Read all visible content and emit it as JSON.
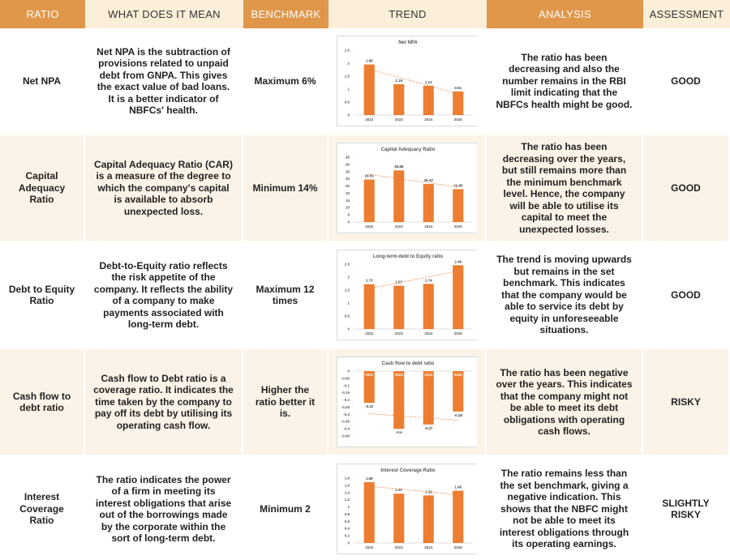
{
  "headers": [
    "RATIO",
    "WHAT DOES IT MEAN",
    "BENCHMARK",
    "TREND",
    "ANALYSIS",
    "ASSESSMENT"
  ],
  "rows": [
    {
      "ratio": "Net NPA",
      "meaning": "Net NPA is the subtraction of provisions related to unpaid debt from GNPA. This gives the exact value of bad loans. It is a better indicator of NBFCs' health.",
      "benchmark": "Maximum 6%",
      "trend": {
        "type": "bar",
        "title": "Net NPA",
        "color": "#ed7d31",
        "categories": [
          "2022",
          "2023",
          "2024",
          "2025"
        ],
        "values": [
          1.95,
          1.19,
          1.13,
          0.91
        ],
        "ylim": [
          0,
          2.5
        ],
        "yticks": [
          0,
          0.5,
          1,
          1.5,
          2,
          2.5
        ]
      },
      "analysis": "The ratio has been decreasing and also the number remains in the RBI limit indicating that the NBFCs health might be good.",
      "assessment": "GOOD"
    },
    {
      "ratio": "Capital Adequacy Ratio",
      "meaning": "Capital Adequacy Ratio (CAR) is a measure of the degree to which the company's capital is available to absorb unexpected loss.",
      "benchmark": "Minimum 14%",
      "trend": {
        "type": "bar",
        "title": "Capital Adequacy Ratio",
        "color": "#ed7d31",
        "categories": [
          "2022",
          "2023",
          "2024",
          "2025"
        ],
        "values": [
          29.55,
          35.86,
          26.42,
          22.85
        ],
        "ylim": [
          0,
          45
        ],
        "yticks": [
          0,
          5,
          10,
          15,
          20,
          25,
          30,
          35,
          40,
          45
        ]
      },
      "analysis": "The ratio has been decreasing over the years, but still remains more than the minimum benchmark level. Hence, the company will be able to utilise its capital to meet the unexpected losses.",
      "assessment": "GOOD"
    },
    {
      "ratio": "Debt to Equity Ratio",
      "meaning": "Debt-to-Equity ratio reflects the risk appetite of the company. It reflects the ability of a company to make payments associated with long-term debt.",
      "benchmark": "Maximum 12 times",
      "trend": {
        "type": "bar",
        "title": "Long-term-debt to Equity ratio",
        "color": "#ed7d31",
        "categories": [
          "2022",
          "2023",
          "2024",
          "2025"
        ],
        "values": [
          1.73,
          1.67,
          1.74,
          2.46
        ],
        "ylim": [
          0,
          2.5
        ],
        "yticks": [
          0,
          0.5,
          1,
          1.5,
          2,
          2.5
        ]
      },
      "analysis": "The trend is moving upwards but remains in the set benchmark. This indicates that the company would be able to service its debt by equity in unforeseeable situations.",
      "assessment": "GOOD"
    },
    {
      "ratio": "Cash flow to debt ratio",
      "meaning": "Cash flow to Debt ratio is a coverage ratio. It indicates the time taken by the company to pay off its debt by utilising its operating cash flow.",
      "benchmark": "Higher the ratio better it is.",
      "trend": {
        "type": "bar",
        "title": "Cash flow to debt ratio",
        "color": "#ed7d31",
        "categories": [
          "2022",
          "2023",
          "2024",
          "2025"
        ],
        "values": [
          -0.22,
          -0.4,
          -0.37,
          -0.28
        ],
        "ylim": [
          -0.45,
          0
        ],
        "yticks": [
          0,
          -0.05,
          -0.1,
          -0.15,
          -0.2,
          -0.25,
          -0.3,
          -0.35,
          -0.4,
          -0.45
        ]
      },
      "analysis": "The ratio has been negative over the years. This indicates that the company might not be able to meet its debt obligations with operating cash flows.",
      "assessment": "RISKY"
    },
    {
      "ratio": "Interest Coverage Ratio",
      "meaning": "The ratio indicates the power of a firm in meeting its interest obligations that arise out of the borrowings made by the corporate within the sort of long-term debt.",
      "benchmark": "Minimum 2",
      "trend": {
        "type": "bar",
        "title": "Interest Coverage Ratio",
        "color": "#ed7d31",
        "categories": [
          "2022",
          "2023",
          "2024",
          "2025"
        ],
        "values": [
          1.69,
          1.37,
          1.32,
          1.45
        ],
        "ylim": [
          0,
          1.8
        ],
        "yticks": [
          0,
          0.2,
          0.4,
          0.6,
          0.8,
          1,
          1.2,
          1.4,
          1.6,
          1.8
        ]
      },
      "analysis": "The ratio remains less than the set benchmark, giving a negative indication. This shows that the NBFC might not be able to meet its interest obligations through its operating earnings.",
      "assessment": "SLIGHTLY RISKY"
    }
  ]
}
